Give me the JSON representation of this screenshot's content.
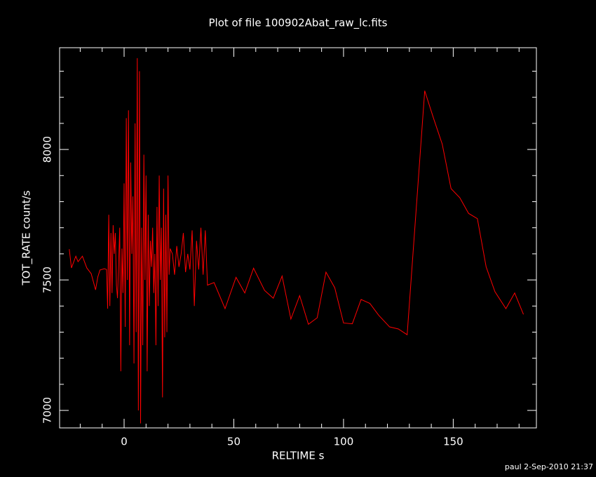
{
  "chart_data": {
    "type": "line",
    "title": "Plot of file 100902Abat_raw_lc.fits",
    "x_label": "RELTIME  s",
    "y_label": "TOT_RATE  count/s",
    "footer": "paul  2-Sep-2010 21:37",
    "xlim": [
      -29.4,
      187.9
    ],
    "ylim": [
      6933,
      8390
    ],
    "xticks": [
      0,
      50,
      100,
      150
    ],
    "yticks": [
      7000,
      7500,
      8000
    ],
    "xminorticks": [
      -20,
      -10,
      10,
      20,
      30,
      40,
      60,
      70,
      80,
      90,
      110,
      120,
      130,
      140,
      160,
      170,
      180
    ],
    "yminorticks": [
      7100,
      7200,
      7300,
      7400,
      7600,
      7700,
      7800,
      7900,
      8100,
      8200,
      8300
    ],
    "x": [
      -25,
      -24,
      -22,
      -21,
      -19,
      -17,
      -15,
      -13,
      -12,
      -11,
      -9,
      -8,
      -7.5,
      -7,
      -6.5,
      -6,
      -5.5,
      -5,
      -4.5,
      -4,
      -3.5,
      -3,
      -2.5,
      -2,
      -1.5,
      -1,
      -0.5,
      0,
      0.5,
      1,
      1.5,
      2,
      2.5,
      3,
      3.5,
      4,
      4.5,
      5,
      5.5,
      6,
      6.5,
      7,
      7.5,
      8,
      8.5,
      9,
      9.5,
      10,
      10.5,
      11,
      11.5,
      12,
      12.5,
      13,
      13.5,
      14,
      14.5,
      15,
      15.5,
      16,
      16.5,
      17,
      17.5,
      18,
      18.5,
      19,
      19.5,
      20,
      20.5,
      21,
      22,
      23,
      24,
      25,
      26,
      27,
      28,
      29,
      30,
      31,
      32,
      33,
      34,
      35,
      36,
      37,
      38,
      41,
      46,
      51,
      55,
      59,
      64,
      68,
      72,
      76,
      80,
      84,
      88,
      92,
      96,
      100,
      104,
      108,
      112,
      116,
      121,
      125,
      129,
      137,
      141,
      145,
      149,
      153,
      157,
      161,
      165,
      169,
      174,
      178,
      182
    ],
    "series": [
      {
        "name": "TOT_RATE",
        "color": "#ff0000",
        "values": [
          7618,
          7546,
          7591,
          7570,
          7591,
          7546,
          7524,
          7462,
          7511,
          7538,
          7543,
          7540,
          7390,
          7750,
          7400,
          7680,
          7450,
          7710,
          7600,
          7680,
          7480,
          7430,
          7560,
          7700,
          7150,
          7620,
          7450,
          7870,
          7320,
          8120,
          7500,
          8150,
          7250,
          7950,
          7600,
          7820,
          7180,
          8100,
          7300,
          8350,
          7000,
          8300,
          6950,
          7700,
          7250,
          7980,
          7500,
          7900,
          7150,
          7750,
          7400,
          7650,
          7550,
          7700,
          7450,
          7600,
          7250,
          7780,
          7400,
          7900,
          7500,
          7700,
          7050,
          7850,
          7280,
          7750,
          7300,
          7900,
          7520,
          7620,
          7600,
          7520,
          7630,
          7550,
          7600,
          7680,
          7530,
          7600,
          7540,
          7690,
          7400,
          7650,
          7540,
          7700,
          7520,
          7690,
          7480,
          7490,
          7390,
          7510,
          7450,
          7545,
          7460,
          7430,
          7515,
          7350,
          7440,
          7330,
          7355,
          7530,
          7470,
          7335,
          7332,
          7425,
          7410,
          7365,
          7320,
          7312,
          7290,
          8225,
          8120,
          8020,
          7850,
          7815,
          7755,
          7735,
          7550,
          7455,
          7390,
          7450,
          7368
        ]
      }
    ]
  }
}
